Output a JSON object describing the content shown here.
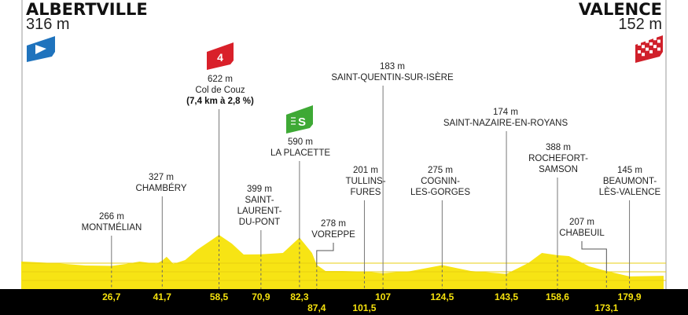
{
  "start": {
    "name": "ALBERTVILLE",
    "altitude": "316 m",
    "icon": "start-flag-icon",
    "color": "#1f73bd"
  },
  "finish": {
    "name": "VALENCE",
    "altitude": "152 m",
    "icon": "finish-checkered-flag-icon",
    "color": "#d0202a"
  },
  "chart_data": {
    "type": "area",
    "title": "",
    "xlabel": "",
    "ylabel": "",
    "x_unit": "km",
    "y_unit": "m",
    "colors": {
      "profile": "#f7e414",
      "band": "#000000",
      "km_text": "#f5e10d"
    },
    "profile": {
      "km": [
        0,
        10,
        19,
        26.7,
        31,
        35,
        40,
        41.7,
        43,
        45,
        48.5,
        52,
        56.5,
        58.5,
        62.3,
        65.8,
        70.9,
        77.4,
        82.3,
        86,
        87.4,
        90,
        94.9,
        101.5,
        107,
        115,
        124.5,
        133,
        143.5,
        150,
        154,
        158.6,
        162,
        168,
        173.1,
        179.9,
        190
      ],
      "elev": [
        316,
        297,
        270,
        266,
        288,
        315,
        290,
        327,
        370,
        288,
        333,
        450,
        568,
        622,
        522,
        396,
        399,
        414,
        590,
        414,
        278,
        207,
        207,
        201,
        183,
        205,
        275,
        207,
        174,
        300,
        414,
        388,
        378,
        260,
        207,
        145,
        152
      ]
    },
    "waypoints": [
      {
        "km": "26,7",
        "altitude": "266 m",
        "name": [
          "MONTMÉLIAN"
        ]
      },
      {
        "km": "41,7",
        "altitude": "327 m",
        "name": [
          "CHAMBÉRY"
        ]
      },
      {
        "km": "58,5",
        "altitude": "622 m",
        "name": [
          "Col de Couz"
        ],
        "detail": "(7,4 km à 2,8 %)",
        "climb_category": "4",
        "climb_icon": "category-4-climb-flag-icon",
        "climb_color": "#d9202a"
      },
      {
        "km": "70,9",
        "altitude": "399 m",
        "name": [
          "SAINT-",
          "LAURENT-",
          "DU-PONT"
        ]
      },
      {
        "km": "82,3",
        "altitude": "590 m",
        "name": [
          "LA PLACETTE"
        ],
        "sprint_icon": "intermediate-sprint-flag-icon",
        "sprint_label": "S",
        "sprint_color": "#3ea935"
      },
      {
        "km": "87,4",
        "altitude": "278 m",
        "name": [
          "VOREPPE"
        ]
      },
      {
        "km": "101,5",
        "altitude": "201 m",
        "name": [
          "TULLINS-",
          "FURES"
        ]
      },
      {
        "km": "107",
        "altitude": "183 m",
        "name": [
          "SAINT-QUENTIN-SUR-ISÈRE"
        ]
      },
      {
        "km": "124,5",
        "altitude": "275 m",
        "name": [
          "COGNIN-",
          "LES-GORGES"
        ]
      },
      {
        "km": "143,5",
        "altitude": "174 m",
        "name": [
          "SAINT-NAZAIRE-EN-ROYANS"
        ]
      },
      {
        "km": "158,6",
        "altitude": "388 m",
        "name": [
          "ROCHEFORT-",
          "SAMSON"
        ]
      },
      {
        "km": "173,1",
        "altitude": "207 m",
        "name": [
          "CHABEUIL"
        ]
      },
      {
        "km": "179,9",
        "altitude": "145 m",
        "name": [
          "BEAUMONT-",
          "LÈS-VALENCE"
        ]
      }
    ]
  }
}
